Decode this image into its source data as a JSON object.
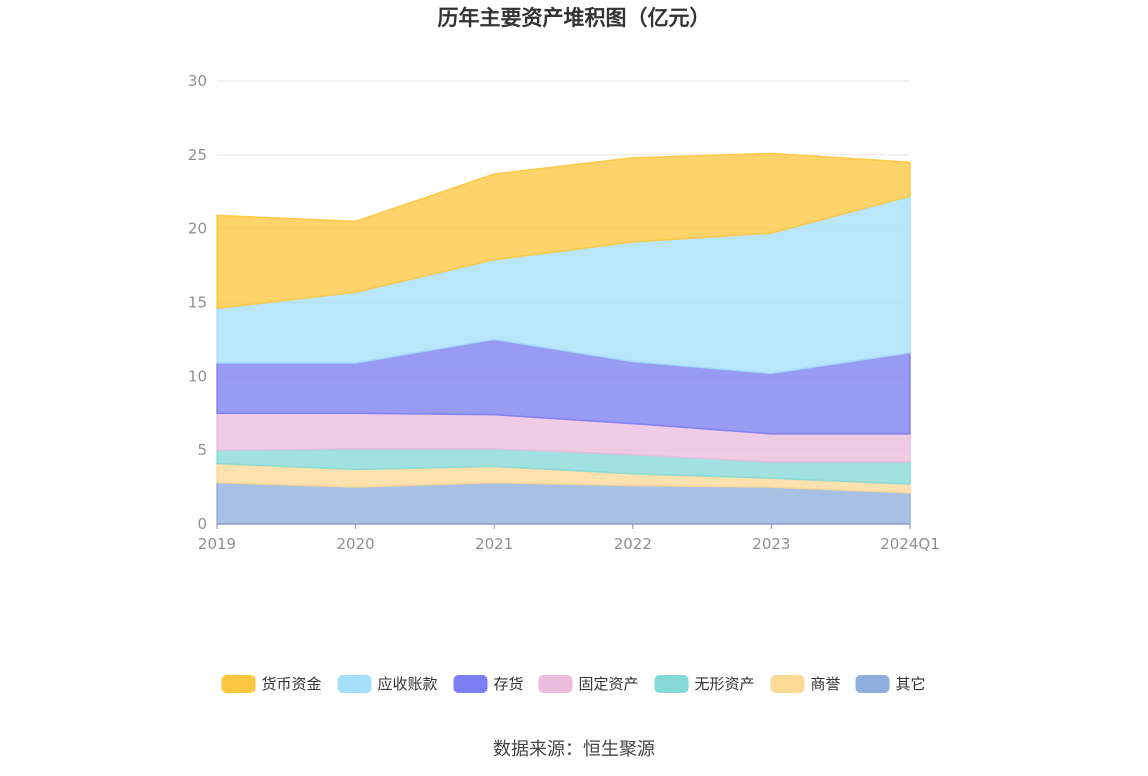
{
  "chart_data": {
    "type": "area",
    "stacked": true,
    "title": "历年主要资产堆积图（亿元）",
    "categories": [
      "2019",
      "2020",
      "2021",
      "2022",
      "2023",
      "2024Q1"
    ],
    "ylim": [
      0,
      30
    ],
    "yticks": [
      "0",
      "5",
      "10",
      "15",
      "20",
      "25",
      "30"
    ],
    "grid": true,
    "legend_position": "bottom",
    "series": [
      {
        "name": "其它",
        "color": "#8eaedb",
        "values": [
          2.8,
          2.5,
          2.8,
          2.6,
          2.5,
          2.1
        ]
      },
      {
        "name": "商誉",
        "color": "#fdd997",
        "values": [
          1.3,
          1.2,
          1.1,
          0.8,
          0.6,
          0.6
        ]
      },
      {
        "name": "无形资产",
        "color": "#86d9d6",
        "values": [
          0.9,
          1.4,
          1.2,
          1.3,
          1.1,
          1.5
        ]
      },
      {
        "name": "固定资产",
        "color": "#ebbcde",
        "values": [
          2.5,
          2.4,
          2.3,
          2.1,
          1.9,
          1.9
        ]
      },
      {
        "name": "存货",
        "color": "#7b7ff1",
        "values": [
          3.4,
          3.4,
          5.1,
          4.2,
          4.1,
          5.5
        ]
      },
      {
        "name": "应收账款",
        "color": "#a6dffa",
        "values": [
          3.7,
          4.8,
          5.4,
          8.1,
          9.5,
          10.6
        ]
      },
      {
        "name": "货币资金",
        "color": "#fec740",
        "values": [
          6.3,
          4.8,
          5.8,
          5.7,
          5.4,
          2.3
        ]
      }
    ]
  },
  "legend_order": [
    "货币资金",
    "应收账款",
    "存货",
    "固定资产",
    "无形资产",
    "商誉",
    "其它"
  ],
  "source_text": "数据来源：恒生聚源"
}
